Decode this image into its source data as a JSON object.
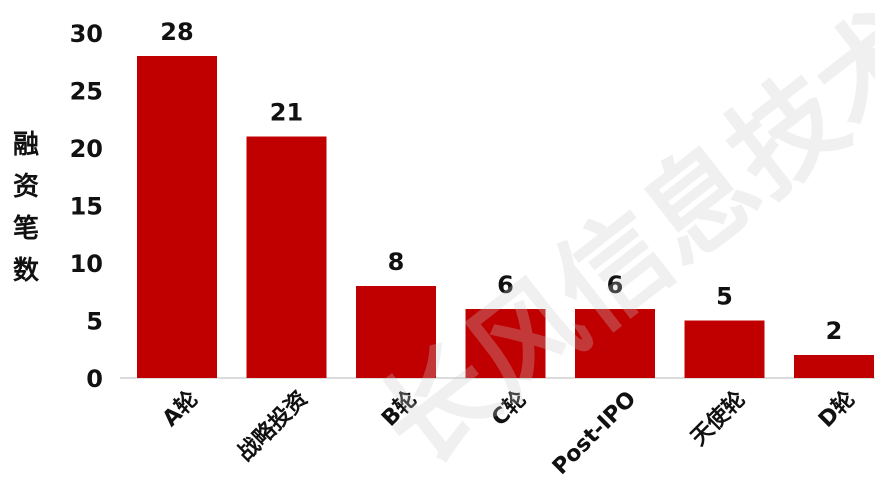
{
  "chart_data": {
    "type": "bar",
    "categories": [
      "A轮",
      "战略投资",
      "B轮",
      "C轮",
      "Post-IPO",
      "天使轮",
      "D轮"
    ],
    "values": [
      28,
      21,
      8,
      6,
      6,
      5,
      2
    ],
    "ylabel": "融资笔数",
    "ylabel_chars": [
      "融",
      "资",
      "笔",
      "数"
    ],
    "yticks": [
      0,
      5,
      10,
      15,
      20,
      25,
      30
    ],
    "ylim": [
      0,
      30
    ],
    "grid": false,
    "bar_color": "#C00000"
  },
  "watermark": "长风信息技术"
}
